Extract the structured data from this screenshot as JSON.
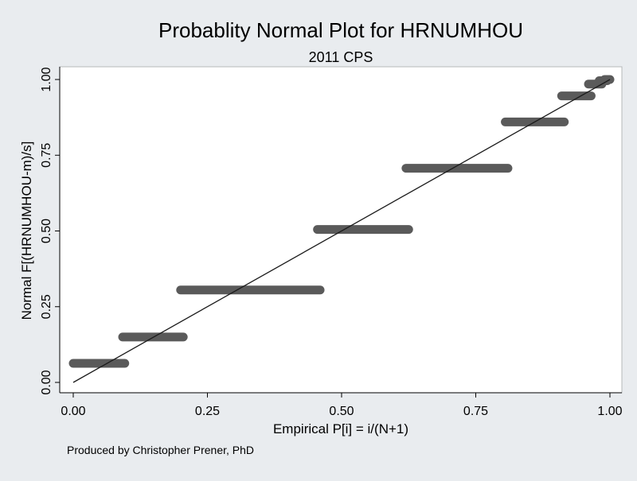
{
  "chart_data": {
    "type": "scatter",
    "title": "Probablity Normal Plot for HRNUMHOU",
    "subtitle": "2011 CPS",
    "xlabel": "Empirical P[i] = i/(N+1)",
    "ylabel": "Normal F[(HRNUMHOU-m)/s]",
    "xlim": [
      0,
      1
    ],
    "ylim": [
      0,
      1
    ],
    "x_ticks": [
      "0.00",
      "0.25",
      "0.50",
      "0.75",
      "1.00"
    ],
    "y_ticks": [
      "0.00",
      "0.25",
      "0.50",
      "0.75",
      "1.00"
    ],
    "grid": false,
    "reference_line": {
      "x": [
        0,
        1
      ],
      "y": [
        0,
        1
      ]
    },
    "series": [
      {
        "segments": [
          {
            "x_start": 0.0,
            "x_end": 0.096,
            "y": 0.063
          },
          {
            "x_start": 0.092,
            "x_end": 0.205,
            "y": 0.15
          },
          {
            "x_start": 0.2,
            "x_end": 0.46,
            "y": 0.305
          },
          {
            "x_start": 0.455,
            "x_end": 0.625,
            "y": 0.505
          },
          {
            "x_start": 0.62,
            "x_end": 0.81,
            "y": 0.707
          },
          {
            "x_start": 0.805,
            "x_end": 0.915,
            "y": 0.86
          },
          {
            "x_start": 0.91,
            "x_end": 0.965,
            "y": 0.946
          },
          {
            "x_start": 0.96,
            "x_end": 0.985,
            "y": 0.985
          },
          {
            "x_start": 0.98,
            "x_end": 0.995,
            "y": 0.996
          },
          {
            "x_start": 0.99,
            "x_end": 1.0,
            "y": 1.0
          }
        ]
      }
    ],
    "colors": {
      "background": "#e9ecef",
      "plot_area": "#ffffff",
      "marker": "#5a5a5a",
      "line": "#1a1a1a"
    }
  },
  "note": "Produced by Christopher Prener, PhD"
}
